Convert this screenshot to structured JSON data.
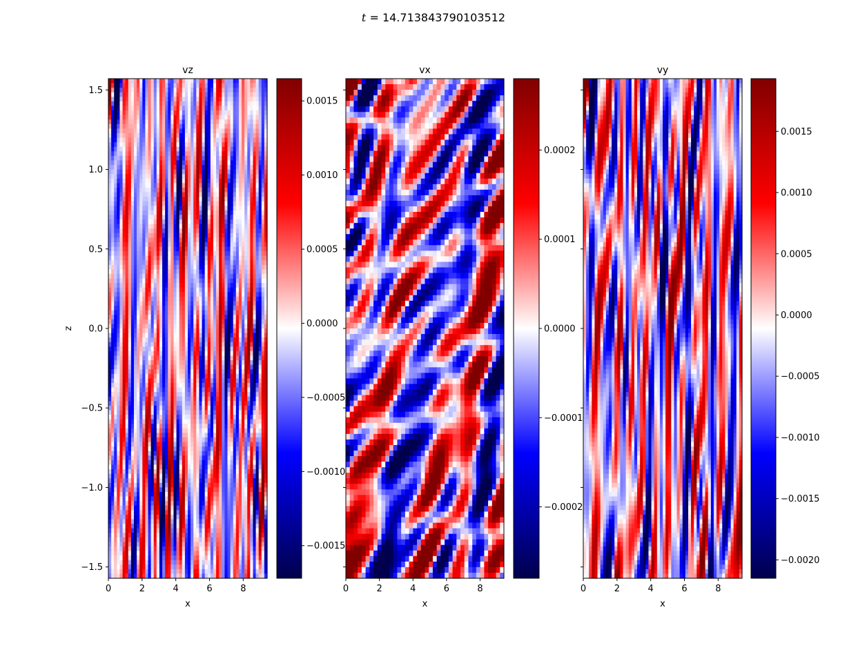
{
  "figure": {
    "suptitle_var": "t",
    "suptitle_eq": "=",
    "suptitle_value": "14.713843790103512"
  },
  "chart_data": [
    {
      "type": "heatmap",
      "title": "vz",
      "xlabel": "x",
      "ylabel": "z",
      "xlim": [
        0,
        9.42
      ],
      "ylim": [
        -1.571,
        1.571
      ],
      "xticks": [
        "0",
        "2",
        "4",
        "6",
        "8"
      ],
      "yticks": [
        "−1.5",
        "−1.0",
        "−0.5",
        "0.0",
        "0.5",
        "1.0",
        "1.5"
      ],
      "ytick_values": [
        -1.5,
        -1.0,
        -0.5,
        0.0,
        0.5,
        1.0,
        1.5
      ],
      "colormap": "seismic",
      "colorbar": {
        "range": [
          -0.00172,
          0.00165
        ],
        "ticks": [
          "−0.0015",
          "−0.0010",
          "−0.0005",
          "0.0000",
          "0.0005",
          "0.0010",
          "0.0015"
        ],
        "tick_values": [
          -0.0015,
          -0.001,
          -0.0005,
          0.0,
          0.0005,
          0.001,
          0.0015
        ]
      }
    },
    {
      "type": "heatmap",
      "title": "vx",
      "xlabel": "x",
      "ylabel": "",
      "xlim": [
        0,
        9.42
      ],
      "ylim": [
        -1.571,
        1.571
      ],
      "xticks": [
        "0",
        "2",
        "4",
        "6",
        "8"
      ],
      "yticks": [],
      "ytick_values": [
        -1.5,
        -1.0,
        -0.5,
        0.0,
        0.5,
        1.0,
        1.5
      ],
      "colormap": "seismic",
      "colorbar": {
        "range": [
          -0.00028,
          0.00028
        ],
        "ticks": [
          "−0.0002",
          "−0.0001",
          "0.0000",
          "0.0001",
          "0.0002"
        ],
        "tick_values": [
          -0.0002,
          -0.0001,
          0.0,
          0.0001,
          0.0002
        ]
      }
    },
    {
      "type": "heatmap",
      "title": "vy",
      "xlabel": "x",
      "ylabel": "",
      "xlim": [
        0,
        9.42
      ],
      "ylim": [
        -1.571,
        1.571
      ],
      "xticks": [
        "0",
        "2",
        "4",
        "6",
        "8"
      ],
      "yticks": [],
      "ytick_values": [
        -1.5,
        -1.0,
        -0.5,
        0.0,
        0.5,
        1.0,
        1.5
      ],
      "colormap": "seismic",
      "colorbar": {
        "range": [
          -0.00215,
          0.00193
        ],
        "ticks": [
          "−0.0020",
          "−0.0015",
          "−0.0010",
          "−0.0005",
          "0.0000",
          "0.0005",
          "0.0010",
          "0.0015"
        ],
        "tick_values": [
          -0.002,
          -0.0015,
          -0.001,
          -0.0005,
          0.0,
          0.0005,
          0.001,
          0.0015
        ]
      }
    }
  ]
}
